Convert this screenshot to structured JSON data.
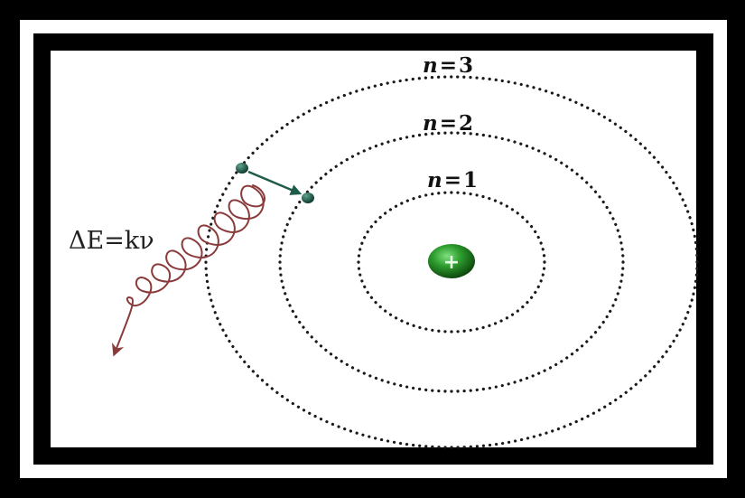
{
  "diagram": {
    "nucleus": {
      "symbol": "+",
      "color": "#2e9e2e"
    },
    "orbits": [
      {
        "id": "orbit-n1",
        "n": "1",
        "label_prefix": "n",
        "label_equals": "="
      },
      {
        "id": "orbit-n2",
        "n": "2",
        "label_prefix": "n",
        "label_equals": "="
      },
      {
        "id": "orbit-n3",
        "n": "3",
        "label_prefix": "n",
        "label_equals": "="
      }
    ],
    "emission_label": "ΔE=kν",
    "colors": {
      "frame": "#000000",
      "orbit": "#1a1a1a",
      "electron": "#1f5b4a",
      "photon": "#8a3a3a",
      "transition_arrow": "#1f5b4a"
    }
  }
}
